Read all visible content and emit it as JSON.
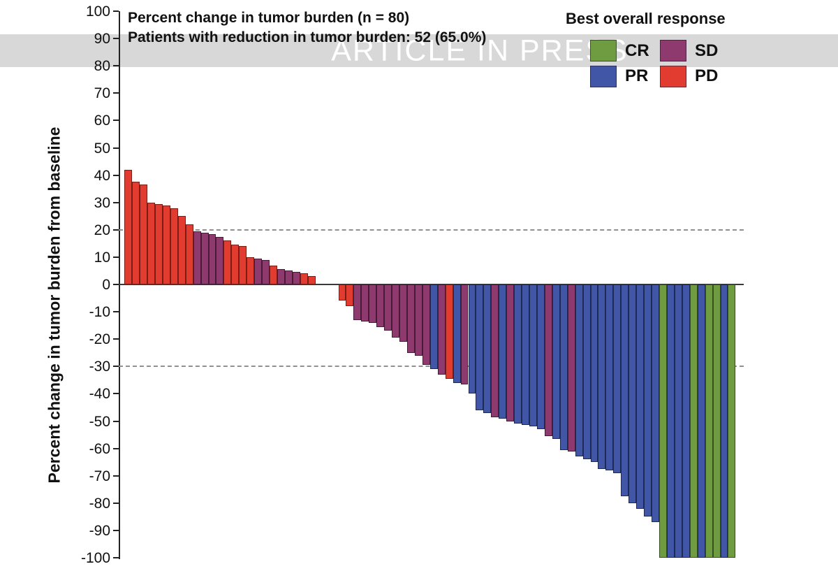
{
  "watermark": {
    "text": "ARTICLE IN PRESS",
    "band_color": "#d8d8d8",
    "text_color": "#ffffff"
  },
  "header": {
    "title": "Percent change in tumor burden (n = 80)",
    "subtitle": "Patients with reduction in tumor burden: 52 (65.0%)"
  },
  "legend": {
    "title": "Best overall response",
    "items": [
      {
        "label": "CR",
        "response": "CR"
      },
      {
        "label": "SD",
        "response": "SD"
      },
      {
        "label": "PR",
        "response": "PR"
      },
      {
        "label": "PD",
        "response": "PD"
      }
    ]
  },
  "chart_data": {
    "type": "bar",
    "title": "Percent change in tumor burden (n = 80)",
    "subtitle": "Patients with reduction in tumor burden: 52 (65.0%)",
    "xlabel": "",
    "ylabel": "Percent change in tumor burden from baseline",
    "ylim": [
      -100,
      100
    ],
    "yticks": [
      100,
      90,
      80,
      70,
      60,
      50,
      40,
      30,
      20,
      10,
      0,
      -10,
      -20,
      -30,
      -40,
      -50,
      -60,
      -70,
      -80,
      -90,
      -100
    ],
    "reference_lines": [
      20,
      -30
    ],
    "grid": false,
    "legend_position": "top-right",
    "colors": {
      "CR": {
        "fill": "#6f9c40",
        "border": "#36511d"
      },
      "PR": {
        "fill": "#4156a6",
        "border": "#1d2a55"
      },
      "SD": {
        "fill": "#8e3a6e",
        "border": "#471b37"
      },
      "PD": {
        "fill": "#e23b2f",
        "border": "#7c1d15"
      }
    },
    "bars": [
      {
        "patient": 1,
        "value": 42,
        "response": "PD"
      },
      {
        "patient": 2,
        "value": 37.5,
        "response": "PD"
      },
      {
        "patient": 3,
        "value": 36.5,
        "response": "PD"
      },
      {
        "patient": 4,
        "value": 30,
        "response": "PD"
      },
      {
        "patient": 5,
        "value": 29.5,
        "response": "PD"
      },
      {
        "patient": 6,
        "value": 29,
        "response": "PD"
      },
      {
        "patient": 7,
        "value": 28,
        "response": "PD"
      },
      {
        "patient": 8,
        "value": 25,
        "response": "PD"
      },
      {
        "patient": 9,
        "value": 22,
        "response": "PD"
      },
      {
        "patient": 10,
        "value": 19.5,
        "response": "SD"
      },
      {
        "patient": 11,
        "value": 19,
        "response": "SD"
      },
      {
        "patient": 12,
        "value": 18.5,
        "response": "SD"
      },
      {
        "patient": 13,
        "value": 17.5,
        "response": "SD"
      },
      {
        "patient": 14,
        "value": 16,
        "response": "PD"
      },
      {
        "patient": 15,
        "value": 14.5,
        "response": "PD"
      },
      {
        "patient": 16,
        "value": 14,
        "response": "PD"
      },
      {
        "patient": 17,
        "value": 10,
        "response": "PD"
      },
      {
        "patient": 18,
        "value": 9.5,
        "response": "SD"
      },
      {
        "patient": 19,
        "value": 9,
        "response": "SD"
      },
      {
        "patient": 20,
        "value": 7,
        "response": "PD"
      },
      {
        "patient": 21,
        "value": 5.5,
        "response": "SD"
      },
      {
        "patient": 22,
        "value": 5,
        "response": "SD"
      },
      {
        "patient": 23,
        "value": 4.5,
        "response": "SD"
      },
      {
        "patient": 24,
        "value": 4,
        "response": "PD"
      },
      {
        "patient": 25,
        "value": 3,
        "response": "PD"
      },
      {
        "patient": 26,
        "value": 0,
        "response": "SD"
      },
      {
        "patient": 27,
        "value": 0,
        "response": "SD"
      },
      {
        "patient": 28,
        "value": 0,
        "response": "PD"
      },
      {
        "patient": 29,
        "value": -6,
        "response": "PD"
      },
      {
        "patient": 30,
        "value": -8,
        "response": "PD"
      },
      {
        "patient": 31,
        "value": -13,
        "response": "SD"
      },
      {
        "patient": 32,
        "value": -13.5,
        "response": "SD"
      },
      {
        "patient": 33,
        "value": -14,
        "response": "SD"
      },
      {
        "patient": 34,
        "value": -15.5,
        "response": "SD"
      },
      {
        "patient": 35,
        "value": -17,
        "response": "SD"
      },
      {
        "patient": 36,
        "value": -19.5,
        "response": "SD"
      },
      {
        "patient": 37,
        "value": -21,
        "response": "SD"
      },
      {
        "patient": 38,
        "value": -25,
        "response": "SD"
      },
      {
        "patient": 39,
        "value": -26,
        "response": "SD"
      },
      {
        "patient": 40,
        "value": -29.5,
        "response": "SD"
      },
      {
        "patient": 41,
        "value": -31,
        "response": "PR"
      },
      {
        "patient": 42,
        "value": -33,
        "response": "SD"
      },
      {
        "patient": 43,
        "value": -34.5,
        "response": "PD"
      },
      {
        "patient": 44,
        "value": -36,
        "response": "PR"
      },
      {
        "patient": 45,
        "value": -36.5,
        "response": "SD"
      },
      {
        "patient": 46,
        "value": -40,
        "response": "PR"
      },
      {
        "patient": 47,
        "value": -46,
        "response": "PR"
      },
      {
        "patient": 48,
        "value": -47,
        "response": "PR"
      },
      {
        "patient": 49,
        "value": -48.5,
        "response": "SD"
      },
      {
        "patient": 50,
        "value": -49,
        "response": "PR"
      },
      {
        "patient": 51,
        "value": -50,
        "response": "SD"
      },
      {
        "patient": 52,
        "value": -51,
        "response": "PR"
      },
      {
        "patient": 53,
        "value": -51.5,
        "response": "PR"
      },
      {
        "patient": 54,
        "value": -52,
        "response": "PR"
      },
      {
        "patient": 55,
        "value": -53,
        "response": "PR"
      },
      {
        "patient": 56,
        "value": -55.5,
        "response": "SD"
      },
      {
        "patient": 57,
        "value": -56.5,
        "response": "PR"
      },
      {
        "patient": 58,
        "value": -60.5,
        "response": "PR"
      },
      {
        "patient": 59,
        "value": -61,
        "response": "SD"
      },
      {
        "patient": 60,
        "value": -63,
        "response": "PR"
      },
      {
        "patient": 61,
        "value": -64,
        "response": "PR"
      },
      {
        "patient": 62,
        "value": -65,
        "response": "PR"
      },
      {
        "patient": 63,
        "value": -67.5,
        "response": "PR"
      },
      {
        "patient": 64,
        "value": -68,
        "response": "PR"
      },
      {
        "patient": 65,
        "value": -69,
        "response": "PR"
      },
      {
        "patient": 66,
        "value": -77.5,
        "response": "PR"
      },
      {
        "patient": 67,
        "value": -80,
        "response": "PR"
      },
      {
        "patient": 68,
        "value": -82,
        "response": "PR"
      },
      {
        "patient": 69,
        "value": -85,
        "response": "PR"
      },
      {
        "patient": 70,
        "value": -87,
        "response": "PR"
      },
      {
        "patient": 71,
        "value": -100,
        "response": "CR"
      },
      {
        "patient": 72,
        "value": -100,
        "response": "PR"
      },
      {
        "patient": 73,
        "value": -100,
        "response": "PR"
      },
      {
        "patient": 74,
        "value": -100,
        "response": "PR"
      },
      {
        "patient": 75,
        "value": -100,
        "response": "CR"
      },
      {
        "patient": 76,
        "value": -100,
        "response": "PR"
      },
      {
        "patient": 77,
        "value": -100,
        "response": "CR"
      },
      {
        "patient": 78,
        "value": -100,
        "response": "CR"
      },
      {
        "patient": 79,
        "value": -100,
        "response": "PR"
      },
      {
        "patient": 80,
        "value": -100,
        "response": "CR"
      }
    ]
  }
}
